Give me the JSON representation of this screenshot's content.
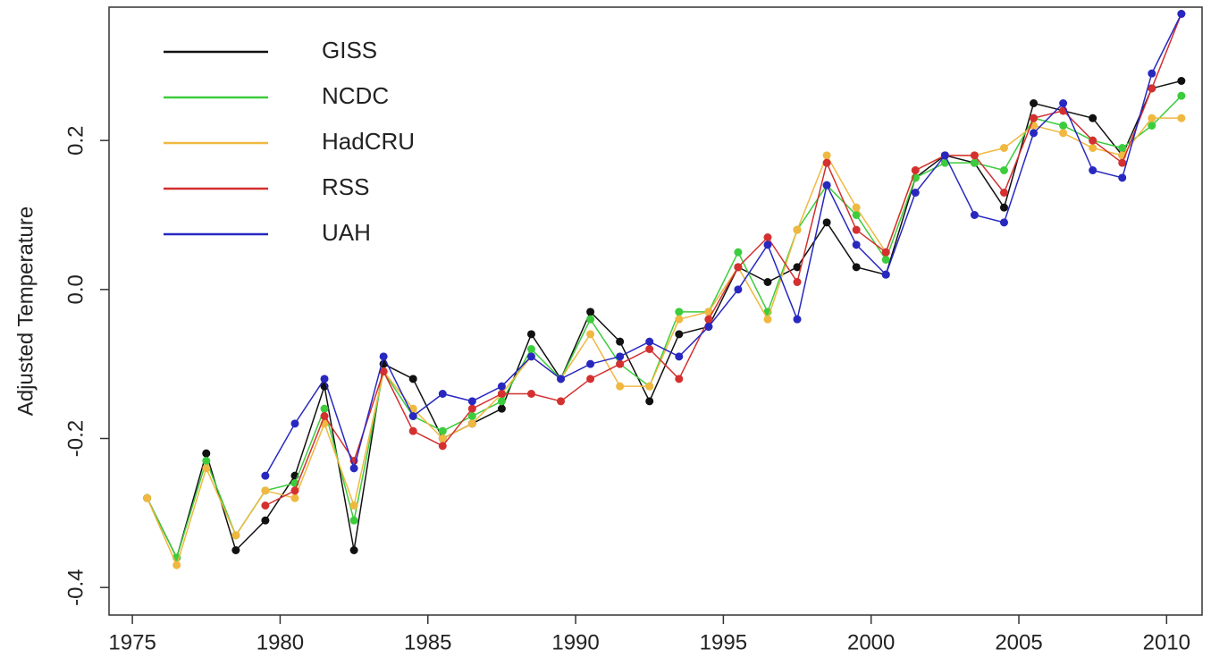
{
  "chart_data": {
    "type": "line",
    "ylabel": "Adjusted Temperature",
    "x": [
      1975.5,
      1976.5,
      1977.5,
      1978.5,
      1979.5,
      1980.5,
      1981.5,
      1982.5,
      1983.5,
      1984.5,
      1985.5,
      1986.5,
      1987.5,
      1988.5,
      1989.5,
      1990.5,
      1991.5,
      1992.5,
      1993.5,
      1994.5,
      1995.5,
      1996.5,
      1997.5,
      1998.5,
      1999.5,
      2000.5,
      2001.5,
      2002.5,
      2003.5,
      2004.5,
      2005.5,
      2006.5,
      2007.5,
      2008.5,
      2009.5,
      2010.5
    ],
    "series": [
      {
        "name": "GISS",
        "color": "#111111",
        "values": [
          -0.28,
          -0.36,
          -0.22,
          -0.35,
          -0.31,
          -0.25,
          -0.13,
          -0.35,
          -0.1,
          -0.12,
          -0.2,
          -0.18,
          -0.16,
          -0.06,
          -0.12,
          -0.03,
          -0.07,
          -0.15,
          -0.06,
          -0.05,
          0.03,
          0.01,
          0.03,
          0.09,
          0.03,
          0.02,
          0.15,
          0.18,
          0.17,
          0.11,
          0.25,
          0.24,
          0.23,
          0.18,
          0.27,
          0.28
        ]
      },
      {
        "name": "NCDC",
        "color": "#3ccc3c",
        "values": [
          -0.28,
          -0.36,
          -0.23,
          -0.33,
          -0.27,
          -0.26,
          -0.16,
          -0.31,
          -0.11,
          -0.17,
          -0.19,
          -0.17,
          -0.15,
          -0.08,
          -0.12,
          -0.04,
          -0.1,
          -0.13,
          -0.03,
          -0.03,
          0.05,
          -0.03,
          0.08,
          0.14,
          0.1,
          0.04,
          0.15,
          0.17,
          0.17,
          0.16,
          0.23,
          0.22,
          0.2,
          0.19,
          0.22,
          0.26
        ]
      },
      {
        "name": "HadCRU",
        "color": "#f0b840",
        "values": [
          -0.28,
          -0.37,
          -0.24,
          -0.33,
          -0.27,
          -0.28,
          -0.18,
          -0.29,
          -0.11,
          -0.16,
          -0.2,
          -0.18,
          -0.14,
          -0.09,
          -0.12,
          -0.06,
          -0.13,
          -0.13,
          -0.04,
          -0.03,
          0.03,
          -0.04,
          0.08,
          0.18,
          0.11,
          0.05,
          0.16,
          0.18,
          0.18,
          0.19,
          0.22,
          0.21,
          0.19,
          0.18,
          0.23,
          0.23
        ]
      },
      {
        "name": "RSS",
        "color": "#d43030",
        "values": [
          null,
          null,
          null,
          null,
          -0.29,
          -0.27,
          -0.17,
          -0.23,
          -0.11,
          -0.19,
          -0.21,
          -0.16,
          -0.14,
          -0.14,
          -0.15,
          -0.12,
          -0.1,
          -0.08,
          -0.12,
          -0.04,
          0.03,
          0.07,
          0.01,
          0.17,
          0.08,
          0.05,
          0.16,
          0.18,
          0.18,
          0.13,
          0.23,
          0.24,
          0.2,
          0.17,
          0.27,
          0.37
        ]
      },
      {
        "name": "UAH",
        "color": "#2828c0",
        "values": [
          null,
          null,
          null,
          null,
          -0.25,
          -0.18,
          -0.12,
          -0.24,
          -0.09,
          -0.17,
          -0.14,
          -0.15,
          -0.13,
          -0.09,
          -0.12,
          -0.1,
          -0.09,
          -0.07,
          -0.09,
          -0.05,
          0.0,
          0.06,
          -0.04,
          0.14,
          0.06,
          0.02,
          0.13,
          0.18,
          0.1,
          0.09,
          0.21,
          0.25,
          0.16,
          0.15,
          0.29,
          0.37
        ]
      }
    ],
    "xlim": [
      1974.21,
      2011.2
    ],
    "ylim": [
      -0.437,
      0.379
    ],
    "xticks": [
      1975,
      1980,
      1985,
      1990,
      1995,
      2000,
      2005,
      2010
    ],
    "yticks": [
      -0.4,
      -0.2,
      {
        "value": 0,
        "label": "0.0"
      },
      0.2
    ],
    "legend": "top-left"
  }
}
